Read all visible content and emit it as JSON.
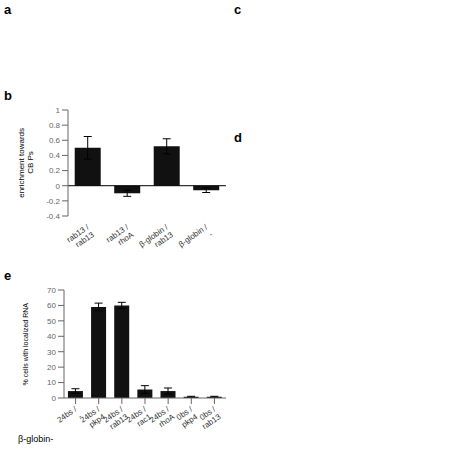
{
  "chart_data": [
    {
      "type": "bar",
      "title": "b",
      "categories": [
        "rab13 /\nrab13",
        "rab13 /\nrhoA",
        "β-globin /\nrab13",
        "β-globin /\n-"
      ],
      "values": [
        0.5,
        -0.1,
        0.52,
        -0.06
      ],
      "errors": [
        0.15,
        0.04,
        0.1,
        0.03
      ],
      "color": "#111111",
      "ylabel": "enrichment towards\nCB  Ps",
      "ylim": [
        -0.4,
        1.0
      ],
      "yticks": [
        -0.4,
        -0.2,
        0.0,
        0.2,
        0.4,
        0.6,
        0.8,
        1.0
      ],
      "annotations": [
        "a",
        "c",
        "d"
      ]
    },
    {
      "type": "bar",
      "title": "e",
      "categories": [
        "24bs /\n-",
        "24bs /\npkp4",
        "24bs /\nrab13",
        "24bs /\nrac1",
        "24bs /\nrhoA",
        "0bs /\npkp4",
        "0bs /\nrab13"
      ],
      "values": [
        4.5,
        59.0,
        60.0,
        5.5,
        4.5,
        0.8,
        0.8
      ],
      "errors": [
        1.5,
        2.5,
        2.0,
        2.5,
        2.0,
        0.3,
        0.3
      ],
      "color": "#111111",
      "ylabel": "% cells with localized RNA",
      "xlabel": "β-globin-",
      "ylim": [
        0,
        70
      ],
      "yticks": [
        0,
        10,
        20,
        30,
        40,
        50,
        60,
        70
      ]
    }
  ]
}
